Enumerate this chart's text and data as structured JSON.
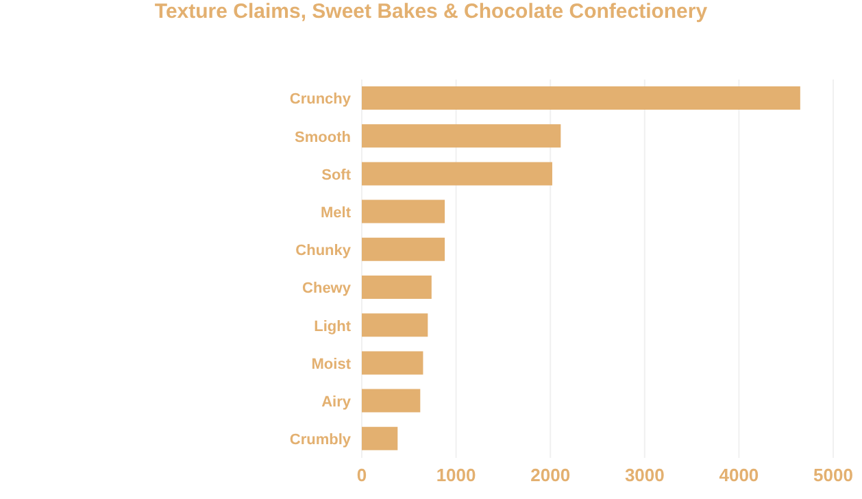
{
  "chart_data": {
    "type": "bar",
    "orientation": "horizontal",
    "title": "Texture Claims, Sweet Bakes & Chocolate Confectionery",
    "categories": [
      "Crunchy",
      "Smooth",
      "Soft",
      "Melt",
      "Chunky",
      "Chewy",
      "Light",
      "Moist",
      "Airy",
      "Crumbly"
    ],
    "values": [
      4650,
      2110,
      2020,
      880,
      880,
      740,
      700,
      650,
      620,
      380
    ],
    "color": "#e3b070",
    "xlim": [
      0,
      5000
    ],
    "xticks": [
      0,
      1000,
      2000,
      3000,
      4000,
      5000
    ],
    "grid": "x"
  }
}
